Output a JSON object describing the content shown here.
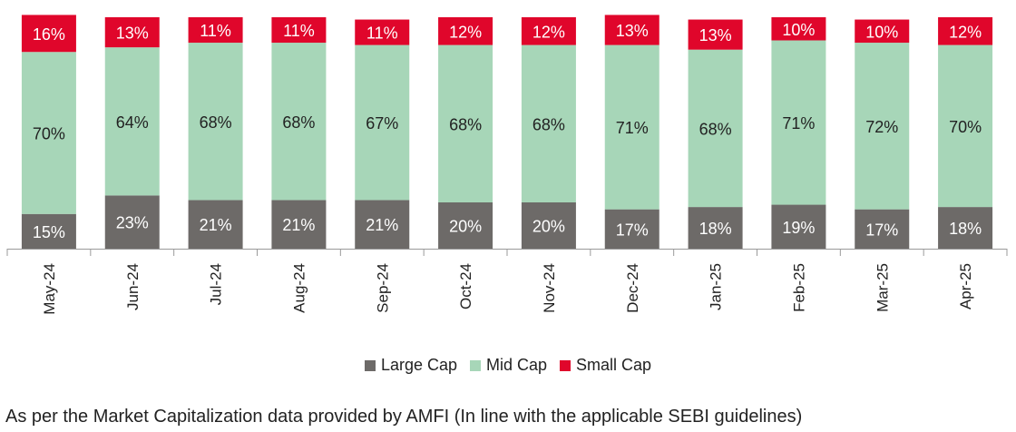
{
  "chart_data": {
    "type": "bar",
    "stacked": true,
    "categories": [
      "May-24",
      "Jun-24",
      "Jul-24",
      "Aug-24",
      "Sep-24",
      "Oct-24",
      "Nov-24",
      "Dec-24",
      "Jan-25",
      "Feb-25",
      "Mar-25",
      "Apr-25"
    ],
    "series": [
      {
        "name": "Large Cap",
        "color": "#6d6a68",
        "values": [
          15,
          23,
          21,
          21,
          21,
          20,
          20,
          17,
          18,
          19,
          17,
          18
        ]
      },
      {
        "name": "Mid Cap",
        "color": "#a7d6b8",
        "values": [
          70,
          64,
          68,
          68,
          67,
          68,
          68,
          71,
          68,
          71,
          72,
          70
        ]
      },
      {
        "name": "Small Cap",
        "color": "#e0062b",
        "values": [
          16,
          13,
          11,
          11,
          11,
          12,
          12,
          13,
          13,
          10,
          10,
          12
        ]
      }
    ],
    "value_format": "percent",
    "legend_position": "bottom"
  },
  "footnote": "As per the Market Capitalization data provided by AMFI (In line with the applicable SEBI guidelines)"
}
